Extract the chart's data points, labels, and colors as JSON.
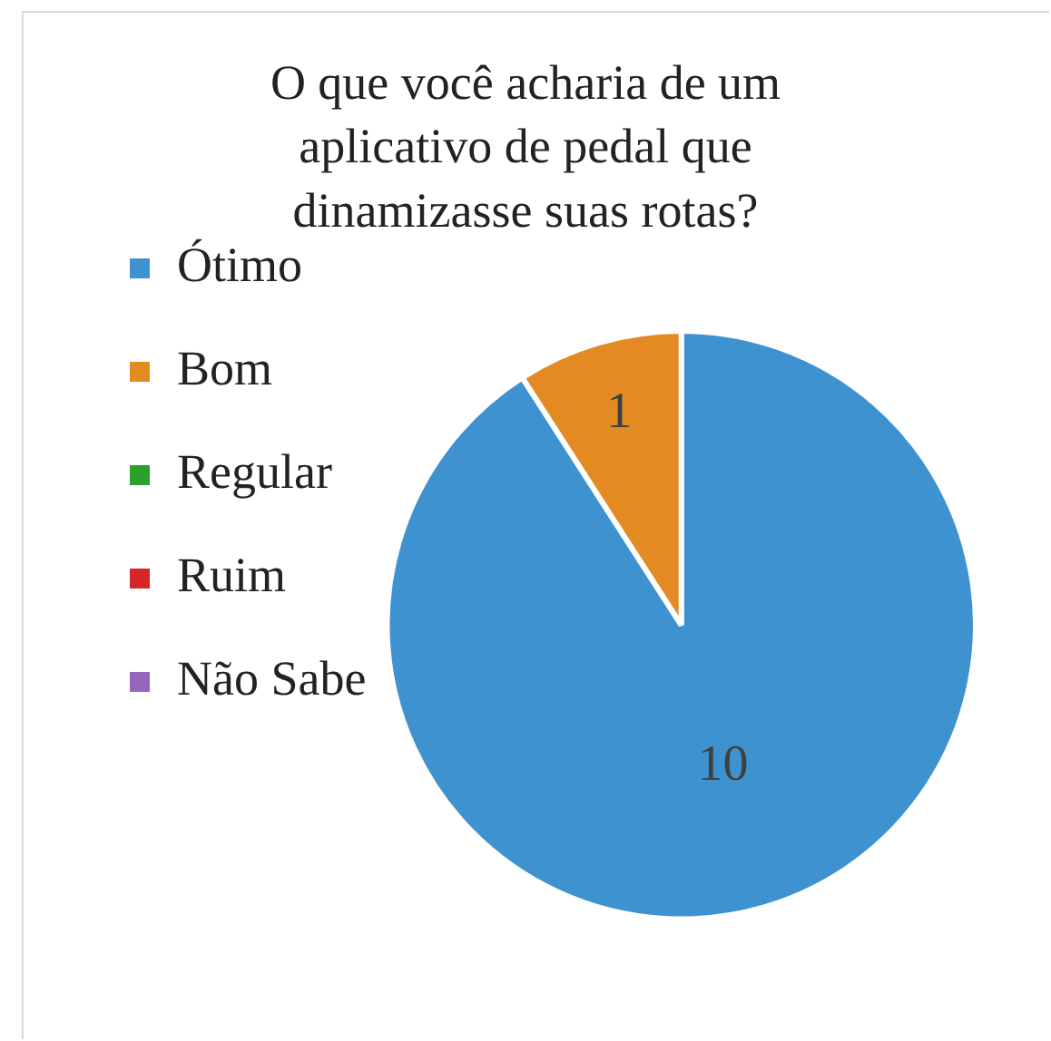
{
  "chart_data": {
    "type": "pie",
    "title": "O que você acharia de um aplicativo de pedal que dinamizasse suas rotas?",
    "categories": [
      "Ótimo",
      "Bom",
      "Regular",
      "Ruim",
      "Não Sabe"
    ],
    "values": [
      10,
      1,
      0,
      0,
      0
    ],
    "colors": [
      "#3f92d0",
      "#e38b22",
      "#2ca02c",
      "#d62728",
      "#9467bd"
    ],
    "value_labels": [
      "10",
      "1",
      null,
      null,
      null
    ],
    "legend": "left"
  }
}
